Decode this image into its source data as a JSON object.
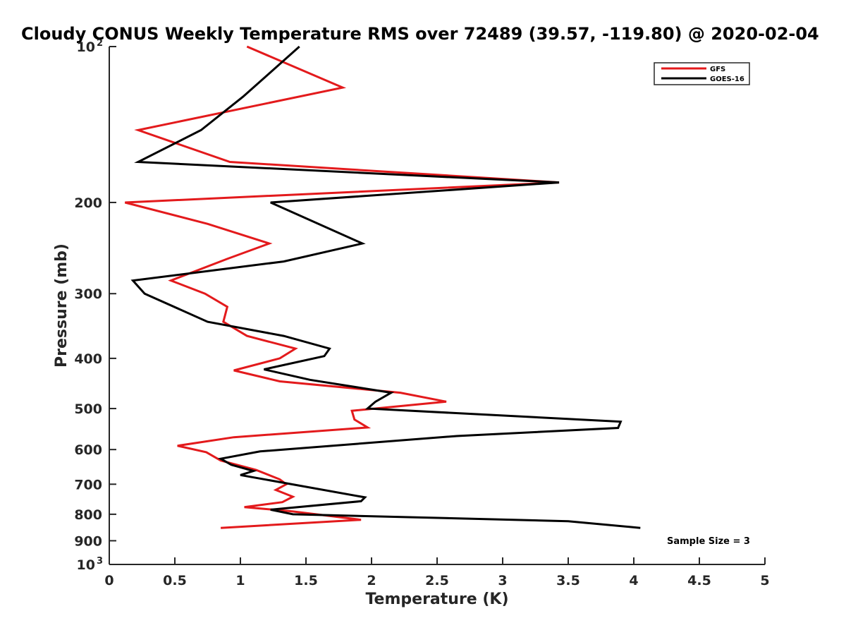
{
  "chart_data": {
    "type": "line",
    "title": "Cloudy CONUS Weekly Temperature RMS over 72489 (39.57, -119.80) @ 2020-02-04",
    "xlabel": "Temperature (K)",
    "ylabel": "Pressure (mb)",
    "xlim": [
      0,
      5
    ],
    "ylim": [
      100,
      1000
    ],
    "y_scale": "log",
    "y_reversed": true,
    "grid": false,
    "legend_position": "top-right",
    "x_ticks": [
      "0",
      "0.5",
      "1",
      "1.5",
      "2",
      "2.5",
      "3",
      "3.5",
      "4",
      "4.5",
      "5"
    ],
    "y_ticks": [
      {
        "value": 100,
        "label": "10",
        "sup": "2"
      },
      {
        "value": 200,
        "label": "200",
        "sup": ""
      },
      {
        "value": 300,
        "label": "300",
        "sup": ""
      },
      {
        "value": 400,
        "label": "400",
        "sup": ""
      },
      {
        "value": 500,
        "label": "500",
        "sup": ""
      },
      {
        "value": 600,
        "label": "600",
        "sup": ""
      },
      {
        "value": 700,
        "label": "700",
        "sup": ""
      },
      {
        "value": 800,
        "label": "800",
        "sup": ""
      },
      {
        "value": 900,
        "label": "900",
        "sup": ""
      },
      {
        "value": 1000,
        "label": "10",
        "sup": "3"
      }
    ],
    "series": [
      {
        "name": "GFS",
        "color": "#e31a1c",
        "points": [
          [
            1.05,
            100
          ],
          [
            1.78,
            120
          ],
          [
            0.22,
            145
          ],
          [
            0.92,
            167
          ],
          [
            3.43,
            183
          ],
          [
            0.12,
            200
          ],
          [
            0.75,
            220
          ],
          [
            1.22,
            240
          ],
          [
            0.9,
            257
          ],
          [
            0.47,
            283
          ],
          [
            0.73,
            300
          ],
          [
            0.9,
            318
          ],
          [
            0.87,
            340
          ],
          [
            1.05,
            362
          ],
          [
            1.42,
            383
          ],
          [
            1.3,
            400
          ],
          [
            0.95,
            422
          ],
          [
            1.3,
            443
          ],
          [
            2.22,
            466
          ],
          [
            2.57,
            485
          ],
          [
            1.85,
            505
          ],
          [
            1.87,
            525
          ],
          [
            1.97,
            544
          ],
          [
            0.95,
            568
          ],
          [
            0.52,
            590
          ],
          [
            0.74,
            607
          ],
          [
            0.85,
            630
          ],
          [
            1.12,
            657
          ],
          [
            1.3,
            685
          ],
          [
            1.35,
            700
          ],
          [
            1.27,
            718
          ],
          [
            1.4,
            740
          ],
          [
            1.32,
            758
          ],
          [
            1.03,
            775
          ],
          [
            1.4,
            790
          ],
          [
            1.92,
            820
          ],
          [
            0.85,
            850
          ]
        ]
      },
      {
        "name": "GOES-16",
        "color": "#000000",
        "points": [
          [
            1.45,
            100
          ],
          [
            1.02,
            125
          ],
          [
            0.7,
            145
          ],
          [
            0.22,
            167
          ],
          [
            3.43,
            183
          ],
          [
            1.23,
            200
          ],
          [
            1.93,
            240
          ],
          [
            1.33,
            260
          ],
          [
            0.18,
            283
          ],
          [
            0.27,
            300
          ],
          [
            0.75,
            340
          ],
          [
            1.33,
            362
          ],
          [
            1.68,
            383
          ],
          [
            1.64,
            396
          ],
          [
            1.18,
            420
          ],
          [
            1.53,
            440
          ],
          [
            2.15,
            466
          ],
          [
            2.03,
            485
          ],
          [
            1.97,
            500
          ],
          [
            3.9,
            530
          ],
          [
            3.88,
            545
          ],
          [
            2.65,
            565
          ],
          [
            1.15,
            605
          ],
          [
            0.85,
            625
          ],
          [
            0.93,
            642
          ],
          [
            1.1,
            660
          ],
          [
            1.0,
            672
          ],
          [
            1.95,
            742
          ],
          [
            1.92,
            755
          ],
          [
            1.23,
            784
          ],
          [
            1.4,
            800
          ],
          [
            3.5,
            825
          ],
          [
            4.05,
            850
          ]
        ]
      }
    ],
    "annotation": "Sample Size = 3"
  }
}
